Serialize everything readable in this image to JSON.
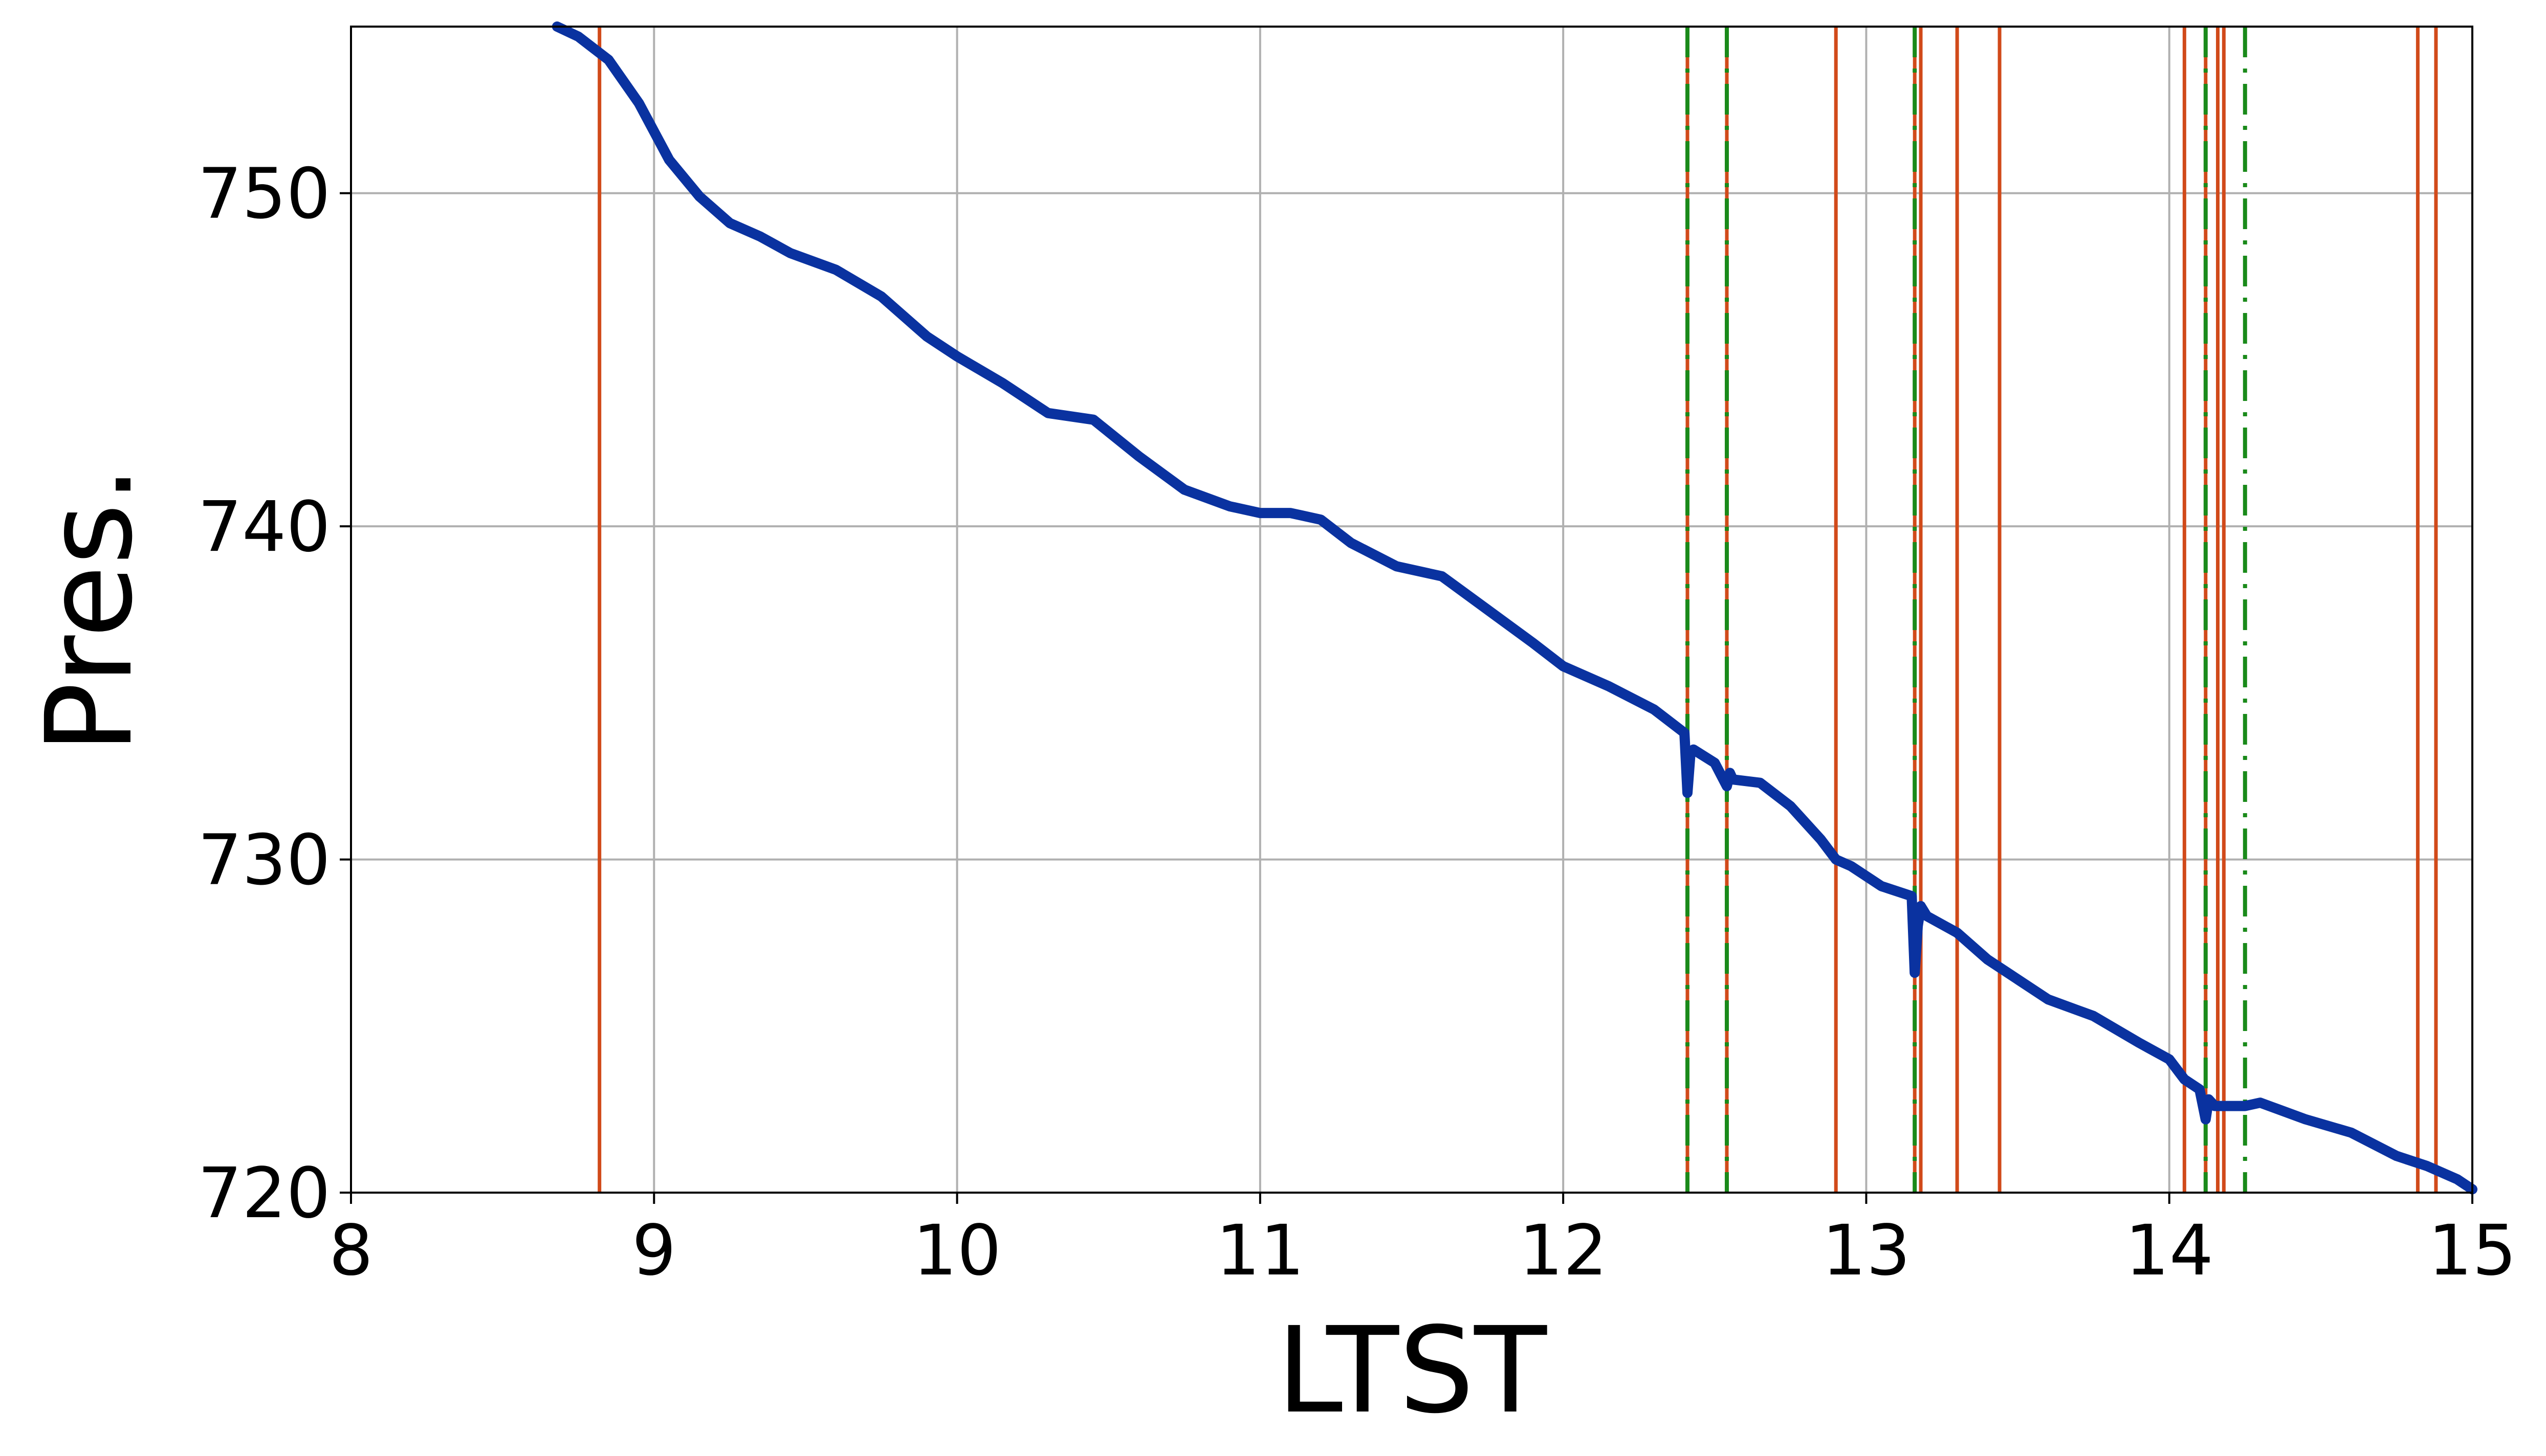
{
  "chart_data": {
    "type": "line",
    "xlabel": "LTST",
    "ylabel": "Pres.",
    "xlim": [
      8,
      15
    ],
    "ylim": [
      720,
      755
    ],
    "xticks": [
      8,
      9,
      10,
      11,
      12,
      13,
      14,
      15
    ],
    "yticks": [
      720,
      730,
      740,
      750
    ],
    "grid": true,
    "colors": {
      "series": "#0a32a0",
      "solid_markers": "#d14a1a",
      "dashdot_markers": "#1a8a1a",
      "grid": "#b0b0b0",
      "axes": "#000000"
    },
    "series": [
      {
        "values_x": [
          8.68,
          8.75,
          8.85,
          8.95,
          9.05,
          9.15,
          9.25,
          9.35,
          9.45,
          9.6,
          9.75,
          9.9,
          10.0,
          10.15,
          10.3,
          10.45,
          10.6,
          10.75,
          10.9,
          11.0,
          11.1,
          11.2,
          11.3,
          11.45,
          11.6,
          11.75,
          11.9,
          12.0,
          12.15,
          12.3,
          12.4,
          12.41,
          12.42,
          12.43,
          12.5,
          12.54,
          12.55,
          12.56,
          12.65,
          12.75,
          12.85,
          12.9,
          12.95,
          13.05,
          13.15,
          13.16,
          13.17,
          13.18,
          13.2,
          13.3,
          13.4,
          13.5,
          13.6,
          13.75,
          13.9,
          14.0,
          14.05,
          14.1,
          14.12,
          14.13,
          14.15,
          14.2,
          14.25,
          14.3,
          14.45,
          14.6,
          14.75,
          14.85,
          14.95,
          15.0
        ],
        "values_y": [
          755.0,
          754.7,
          754.0,
          752.7,
          751.0,
          749.9,
          749.1,
          748.7,
          748.2,
          747.7,
          746.9,
          745.7,
          745.1,
          744.3,
          743.4,
          743.2,
          742.1,
          741.1,
          740.6,
          740.4,
          740.4,
          740.2,
          739.5,
          738.8,
          738.5,
          737.5,
          736.5,
          735.8,
          735.2,
          734.5,
          733.8,
          732.0,
          733.2,
          733.3,
          732.9,
          732.2,
          732.6,
          732.4,
          732.3,
          731.6,
          730.6,
          730.0,
          729.8,
          729.2,
          728.9,
          726.6,
          728.0,
          728.6,
          728.3,
          727.8,
          727.0,
          726.4,
          725.8,
          725.3,
          724.5,
          724.0,
          723.4,
          723.1,
          722.2,
          722.8,
          722.6,
          722.6,
          722.6,
          722.7,
          722.2,
          721.8,
          721.1,
          720.8,
          720.4,
          720.1
        ]
      }
    ],
    "vertical_lines_solid": [
      8.82,
      12.41,
      12.54,
      12.9,
      13.16,
      13.18,
      13.3,
      13.44,
      14.05,
      14.12,
      14.16,
      14.18,
      14.82,
      14.88
    ],
    "vertical_lines_dashdot": [
      12.41,
      12.54,
      13.16,
      14.12,
      14.25
    ]
  }
}
